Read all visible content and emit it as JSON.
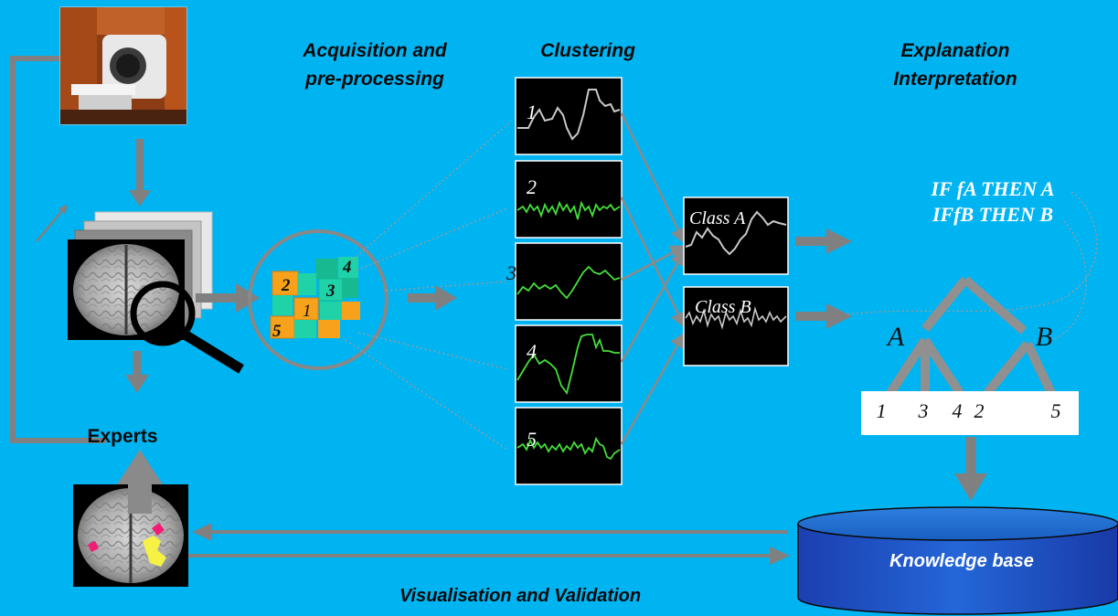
{
  "headings": {
    "acquisition": [
      "Acquisition and",
      "pre-processing"
    ],
    "clustering": "Clustering",
    "explanation": [
      "Explanation",
      "Interpretation"
    ],
    "experts": "Experts",
    "knowledge_base": "Knowledge base",
    "visualisation": "Visualisation and Validation"
  },
  "cube_labels": [
    "2",
    "3",
    "4",
    "1",
    "5"
  ],
  "signal_labels": [
    "1",
    "2",
    "3",
    "4",
    "5"
  ],
  "classes": [
    "Class A",
    "Class B"
  ],
  "rules": [
    "IF fA THEN A",
    "IFfB THEN B"
  ],
  "tree": {
    "nodes": [
      "A",
      "B"
    ],
    "leaves": [
      "1",
      "3",
      "4",
      "2",
      "5"
    ]
  },
  "colors": {
    "background": "#00b4f2",
    "arrow": "#808080",
    "signal_white": "#c8c8c8",
    "signal_green": "#44e03a",
    "cube_orange": "#f7a21a",
    "cube_teal": "#1fd2a8"
  },
  "icons": [
    "mri-scanner-photo",
    "brain-scan-stack",
    "magnifier-icon",
    "voxel-cube",
    "brain-activation-map",
    "database-cylinder"
  ]
}
